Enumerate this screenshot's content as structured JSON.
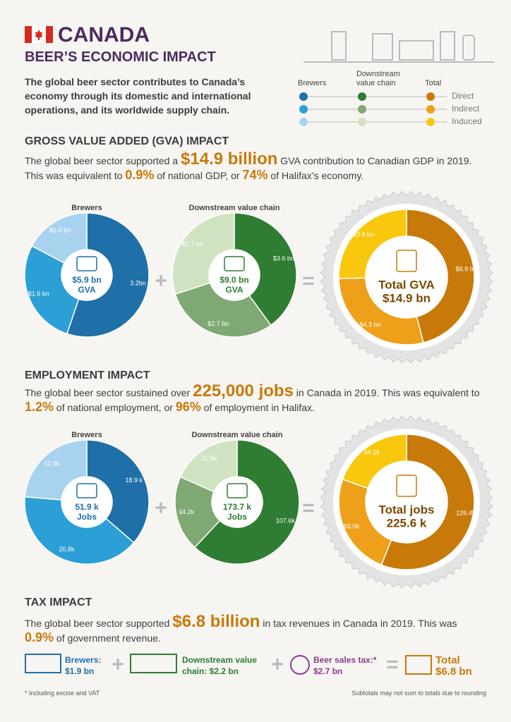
{
  "header": {
    "country": "CANADA",
    "subtitle": "BEER’S ECONOMIC IMPACT",
    "intro": "The global beer sector contributes to Canada’s economy through its domestic and international operations, and its worldwide supply chain."
  },
  "legend": {
    "columns": [
      "Brewers",
      "Downstream value chain",
      "Total"
    ],
    "rows": [
      "Direct",
      "Indirect",
      "Induced"
    ],
    "colors": [
      [
        "#1f6fa8",
        "#2e7d32",
        "#c77a0a"
      ],
      [
        "#2b9fd6",
        "#7fa872",
        "#eea01a"
      ],
      [
        "#a8d3ee",
        "#cfe3c1",
        "#f9c80e"
      ]
    ]
  },
  "gva": {
    "heading": "GROSS VALUE ADDED (GVA) IMPACT",
    "text": [
      "The global beer sector supported a ",
      "$14.9 billion",
      " GVA contribution to Canadian GDP in 2019. This was equivalent to ",
      "0.9%",
      " of national GDP, or ",
      "74%",
      " of Halifax’s economy."
    ]
  },
  "employment": {
    "heading": "EMPLOYMENT IMPACT",
    "text": [
      "The global beer sector sustained over ",
      "225,000 jobs",
      " in Canada in 2019. This was equivalent to ",
      "1.2%",
      " of national employment, or ",
      "96%",
      " of employment in Halifax."
    ]
  },
  "tax": {
    "heading": "TAX IMPACT",
    "text": [
      "The global beer sector supported ",
      "$6.8 billion",
      " in tax revenues in Canada in 2019. This was ",
      "0.9%",
      " of government revenue."
    ],
    "items": [
      [
        "Brewers:",
        "$1.9 bn"
      ],
      [
        "Downstream value",
        "chain: $2.2 bn"
      ],
      [
        "Beer sales tax:*",
        "$2.7 bn"
      ],
      [
        "Total",
        "$6.8 bn"
      ]
    ]
  },
  "footnotes": [
    "* Including excise and VAT",
    "Subtotals may not sum to totals due to rounding"
  ],
  "chart_data": [
    {
      "type": "pie",
      "title": "Brewers",
      "values": [
        3.2,
        1.6,
        1.0
      ],
      "value_labels": [
        "3.2bn",
        "$1.6 bn",
        "$1.0 bn"
      ],
      "center": [
        "$5.9 bn",
        "GVA"
      ],
      "colors": [
        "#1f6fa8",
        "#2b9fd6",
        "#a8d3ee"
      ]
    },
    {
      "type": "pie",
      "title": "Downstream value chain",
      "values": [
        3.6,
        2.7,
        2.7
      ],
      "value_labels": [
        "$3.6 bn",
        "$2.7 bn",
        "$2.7 bn"
      ],
      "center": [
        "$9.0 bn",
        "GVA"
      ],
      "colors": [
        "#2e7d32",
        "#7fa872",
        "#cfe3c1"
      ]
    },
    {
      "type": "pie",
      "values": [
        6.9,
        4.3,
        3.8
      ],
      "value_labels": [
        "$6.9 bn",
        "$4.3 bn",
        "$3.8 bn"
      ],
      "center": [
        "Total GVA",
        "$14.9 bn"
      ],
      "colors": [
        "#c77a0a",
        "#eea01a",
        "#f9c80e"
      ]
    },
    {
      "type": "pie",
      "title": "Brewers",
      "values": [
        18.9,
        20.8,
        12.3
      ],
      "value_labels": [
        "18.9 k",
        "20.8k",
        "12.3k"
      ],
      "center": [
        "51.9 k",
        "Jobs"
      ],
      "colors": [
        "#1f6fa8",
        "#2b9fd6",
        "#a8d3ee"
      ]
    },
    {
      "type": "pie",
      "title": "Downstream value chain",
      "values": [
        107.6,
        34.2,
        31.9
      ],
      "value_labels": [
        "107.6k",
        "34.2k",
        "31.9k"
      ],
      "center": [
        "173.7 k",
        "Jobs"
      ],
      "colors": [
        "#2e7d32",
        "#7fa872",
        "#cfe3c1"
      ]
    },
    {
      "type": "pie",
      "values": [
        126.4,
        55.0,
        44.1
      ],
      "value_labels": [
        "126.4k",
        "55.0k",
        "44.1k"
      ],
      "center": [
        "Total jobs",
        "225.6 k"
      ],
      "colors": [
        "#c77a0a",
        "#eea01a",
        "#f9c80e"
      ]
    }
  ]
}
